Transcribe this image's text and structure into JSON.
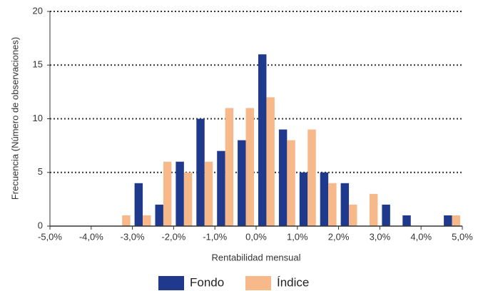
{
  "chart_data": {
    "type": "histogram",
    "x_label": "Rentabilidad mensual",
    "y_label": "Frecuencia (Número de observaciones)",
    "bins": [
      -5,
      -4.5,
      -4,
      -3.5,
      -3,
      -2.5,
      -2,
      -1.5,
      -1,
      -0.5,
      0,
      0.5,
      1,
      1.5,
      2,
      2.5,
      3,
      3.5,
      4,
      4.5,
      5
    ],
    "series": [
      {
        "name": "Fondo",
        "color": "#1f3a8c",
        "values": [
          0,
          0,
          0,
          0,
          4,
          2,
          6,
          10,
          7,
          8,
          16,
          9,
          5,
          5,
          4,
          0,
          2,
          1,
          0,
          1
        ]
      },
      {
        "name": "Índice",
        "color": "#f8b98a",
        "values": [
          0,
          0,
          0,
          1,
          1,
          6,
          5,
          6,
          11,
          11,
          12,
          8,
          9,
          4,
          2,
          3,
          0,
          0,
          0,
          1
        ]
      }
    ],
    "xlim": [
      -5,
      5
    ],
    "xticks": [
      {
        "value": -5,
        "label": "-5,0%"
      },
      {
        "value": -4,
        "label": "-4,0%"
      },
      {
        "value": -3,
        "label": "-3,0%"
      },
      {
        "value": -2,
        "label": "-2,0%"
      },
      {
        "value": -1,
        "label": "-1,0%"
      },
      {
        "value": 0,
        "label": "0,0%"
      },
      {
        "value": 1,
        "label": "1,0%"
      },
      {
        "value": 2,
        "label": "2,0%"
      },
      {
        "value": 3,
        "label": "3,0%"
      },
      {
        "value": 4,
        "label": "4,0%"
      },
      {
        "value": 5,
        "label": "5,0%"
      }
    ],
    "ylim": [
      0,
      20
    ],
    "yticks": [
      0,
      5,
      10,
      15,
      20
    ],
    "grid": true,
    "legend": "bottom"
  }
}
